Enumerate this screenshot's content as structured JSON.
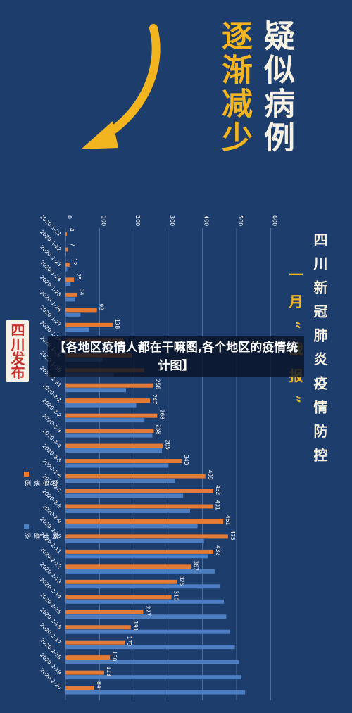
{
  "title": "疑似病例",
  "subtitle": "逐渐减少",
  "header": "四川新冠肺炎疫情防控",
  "sub_header": "一月“战报”",
  "logo_text": "四川发布",
  "banner": "【各地区疫情人都在干嘛图,各个地区的疫情统计图】",
  "colors": {
    "bg": "#1d3d6d",
    "suspected": "#e37a35",
    "confirmed": "#4d7ec2",
    "arrow": "#f2b41f"
  },
  "chart_data": {
    "type": "bar",
    "orientation": "rotated-90",
    "ylim": [
      0,
      600
    ],
    "yticks": [
      0,
      100,
      200,
      300,
      400,
      500,
      600
    ],
    "categories": [
      "2020-1-21",
      "2020-1-22",
      "2020-1-23",
      "2020-1-24",
      "2020-1-25",
      "2020-1-26",
      "2020-1-27",
      "2020-1-28",
      "2020-1-29",
      "2020-1-30",
      "2020-1-31",
      "2020-2-1",
      "2020-2-2",
      "2020-2-3",
      "2020-2-4",
      "2020-2-5",
      "2020-2-6",
      "2020-2-7",
      "2020-2-8",
      "2020-2-9",
      "2020-2-10",
      "2020-2-11",
      "2020-2-12",
      "2020-2-13",
      "2020-2-14",
      "2020-2-15",
      "2020-2-16",
      "2020-2-17",
      "2020-2-18",
      "2020-2-19",
      "2020-2-20"
    ],
    "series": [
      {
        "name": "疑似病例",
        "values": [
          4,
          7,
          12,
          25,
          34,
          92,
          138,
          170,
          195,
          230,
          256,
          247,
          268,
          258,
          285,
          340,
          409,
          432,
          431,
          461,
          475,
          432,
          367,
          326,
          310,
          227,
          191,
          173,
          130,
          113,
          84
        ]
      },
      {
        "name": "累计确诊",
        "values": [
          1,
          2,
          5,
          15,
          28,
          44,
          69,
          90,
          108,
          142,
          177,
          207,
          231,
          254,
          282,
          301,
          321,
          344,
          364,
          386,
          405,
          417,
          436,
          451,
          463,
          470,
          481,
          495,
          508,
          514,
          525
        ]
      }
    ],
    "data_labels": {
      "show": [
        true,
        true,
        true,
        true,
        true,
        true,
        true,
        false,
        false,
        false,
        true,
        true,
        true,
        true,
        true,
        true,
        true,
        true,
        true,
        true,
        true,
        true,
        true,
        true,
        true,
        true,
        true,
        true,
        true,
        true,
        true
      ]
    }
  }
}
